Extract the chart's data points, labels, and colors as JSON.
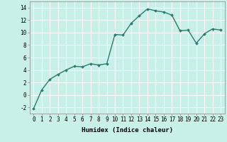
{
  "x": [
    0,
    1,
    2,
    3,
    4,
    5,
    6,
    7,
    8,
    9,
    10,
    11,
    12,
    13,
    14,
    15,
    16,
    17,
    18,
    19,
    20,
    21,
    22,
    23
  ],
  "y": [
    -2.2,
    0.8,
    2.5,
    3.3,
    4.0,
    4.6,
    4.5,
    5.0,
    4.8,
    5.0,
    9.7,
    9.6,
    11.5,
    12.7,
    13.8,
    13.5,
    13.3,
    12.8,
    10.3,
    10.4,
    8.3,
    9.8,
    10.6,
    10.4
  ],
  "line_color": "#2d7a6e",
  "marker": "D",
  "marker_size": 2.0,
  "bg_color": "#c8f0e8",
  "grid_color": "#ffffff",
  "ylim": [
    -3,
    15
  ],
  "yticks": [
    -2,
    0,
    2,
    4,
    6,
    8,
    10,
    12,
    14
  ],
  "xticks": [
    0,
    1,
    2,
    3,
    4,
    5,
    6,
    7,
    8,
    9,
    10,
    11,
    12,
    13,
    14,
    15,
    16,
    17,
    18,
    19,
    20,
    21,
    22,
    23
  ],
  "xlabel": "Humidex (Indice chaleur)",
  "xlabel_fontsize": 6.5,
  "tick_fontsize": 5.5,
  "line_width": 1.0
}
